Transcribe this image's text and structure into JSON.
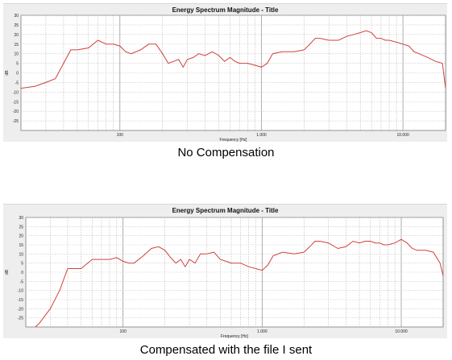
{
  "chart_data": [
    {
      "type": "line",
      "title": "Energy Spectrum Magnitude - Title",
      "xlabel": "Frequency [Hz]",
      "ylabel": "dB",
      "x_scale": "log",
      "xlim": [
        20,
        20000
      ],
      "ylim": [
        -30,
        30
      ],
      "x_ticks": [
        100,
        1000,
        10000
      ],
      "x_tick_labels": [
        "100",
        "1.000",
        "10.000"
      ],
      "y_ticks": [
        30,
        25,
        20,
        15,
        10,
        5,
        0,
        -5,
        -10,
        -15,
        -20,
        -25
      ],
      "grid": true,
      "line_color": "#d04040",
      "series": [
        {
          "x": [
            20,
            25,
            30,
            35,
            40,
            45,
            50,
            60,
            70,
            80,
            90,
            100,
            110,
            120,
            140,
            160,
            180,
            200,
            220,
            240,
            260,
            280,
            300,
            330,
            360,
            400,
            450,
            500,
            550,
            600,
            650,
            700,
            800,
            900,
            1000,
            1100,
            1200,
            1400,
            1700,
            2000,
            2200,
            2400,
            2600,
            3000,
            3500,
            4000,
            4500,
            5000,
            5500,
            6000,
            6500,
            7000,
            7500,
            8000,
            9000,
            10000,
            11000,
            12000,
            13000,
            15000,
            17000,
            19000,
            20000
          ],
          "y": [
            -8,
            -7,
            -5,
            -3,
            5,
            12,
            12,
            13,
            17,
            15,
            15,
            14,
            11,
            10,
            12,
            15,
            15,
            10,
            5,
            6,
            7,
            3,
            7,
            8,
            10,
            9,
            11,
            9,
            6,
            8,
            6,
            5,
            5,
            4,
            3,
            5,
            10,
            11,
            11,
            12,
            15,
            18,
            18,
            17,
            17,
            19,
            20,
            21,
            22,
            21,
            18,
            18,
            17,
            17,
            16,
            15,
            14,
            11,
            10,
            8,
            6,
            5,
            -8
          ]
        }
      ]
    },
    {
      "type": "line",
      "title": "Energy Spectrum Magnitude - Title",
      "xlabel": "Frequency [Hz]",
      "ylabel": "dB",
      "x_scale": "log",
      "xlim": [
        20,
        20000
      ],
      "ylim": [
        -30,
        30
      ],
      "x_ticks": [
        100,
        1000,
        10000
      ],
      "x_tick_labels": [
        "100",
        "1.000",
        "10.000"
      ],
      "y_ticks": [
        30,
        25,
        20,
        15,
        10,
        5,
        0,
        -5,
        -10,
        -15,
        -20,
        -25
      ],
      "grid": true,
      "line_color": "#d04040",
      "series": [
        {
          "x": [
            20,
            25,
            30,
            35,
            40,
            45,
            50,
            60,
            70,
            80,
            90,
            100,
            110,
            120,
            140,
            160,
            180,
            200,
            220,
            240,
            260,
            280,
            300,
            330,
            360,
            400,
            450,
            500,
            550,
            600,
            650,
            700,
            800,
            900,
            1000,
            1100,
            1200,
            1400,
            1700,
            2000,
            2200,
            2400,
            2600,
            3000,
            3500,
            4000,
            4500,
            5000,
            5500,
            6000,
            6500,
            7000,
            7500,
            8000,
            9000,
            10000,
            11000,
            12000,
            13000,
            15000,
            17000,
            19000,
            20000
          ],
          "y": [
            -35,
            -28,
            -20,
            -10,
            2,
            2,
            2,
            7,
            7,
            7,
            8,
            6,
            5,
            5,
            9,
            13,
            14,
            12,
            8,
            5,
            7,
            3,
            7,
            5,
            10,
            10,
            11,
            7,
            6,
            5,
            5,
            5,
            3,
            2,
            1,
            4,
            9,
            11,
            10,
            11,
            14,
            17,
            17,
            16,
            13,
            14,
            17,
            16,
            17,
            17,
            16,
            16,
            15,
            15,
            16,
            18,
            16,
            13,
            12,
            12,
            11,
            5,
            -2
          ]
        }
      ]
    }
  ],
  "captions": {
    "top": "No Compensation",
    "bottom": "Compensated with the file I sent"
  }
}
